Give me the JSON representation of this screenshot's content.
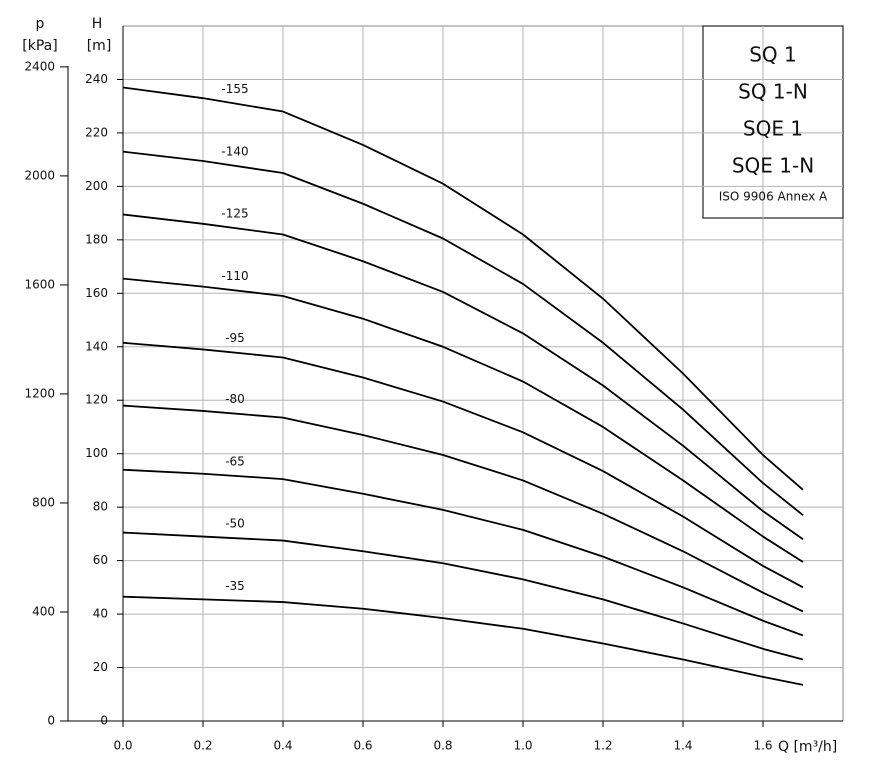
{
  "chart_data": {
    "type": "line",
    "x_label": "Q [m³/h]",
    "y_label_symbol": "H",
    "y_label_unit": "[m]",
    "y2_label_symbol": "p",
    "y2_label_unit": "[kPa]",
    "legend_lines": [
      "SQ 1",
      "SQ 1-N",
      "SQE 1",
      "SQE 1-N"
    ],
    "legend_note": "ISO 9906 Annex A",
    "x": [
      0,
      0.2,
      0.4,
      0.6,
      0.8,
      1.0,
      1.2,
      1.4,
      1.6,
      1.7
    ],
    "series": [
      {
        "name": "-155",
        "color": "#000000",
        "values": [
          237,
          233,
          228,
          215.5,
          201,
          182,
          158,
          130,
          99.5,
          86.5
        ]
      },
      {
        "name": "-140",
        "color": "#000000",
        "values": [
          213,
          209.5,
          205,
          193.5,
          180.5,
          163.5,
          141.5,
          116.5,
          89,
          77
        ]
      },
      {
        "name": "-125",
        "color": "#000000",
        "values": [
          189.5,
          186,
          182,
          172,
          160.5,
          145,
          125.5,
          103,
          78.5,
          68
        ]
      },
      {
        "name": "-110",
        "color": "#000000",
        "values": [
          165.5,
          162.5,
          159,
          150.5,
          140,
          127,
          110,
          90,
          69,
          59.5
        ]
      },
      {
        "name": "-95",
        "color": "#000000",
        "values": [
          141.5,
          139,
          136,
          128.5,
          119.5,
          108,
          93.5,
          76.5,
          58,
          50
        ]
      },
      {
        "name": "-80",
        "color": "#000000",
        "values": [
          118,
          116,
          113.5,
          107,
          99.5,
          90,
          77.5,
          63.5,
          48,
          41
        ]
      },
      {
        "name": "-65",
        "color": "#000000",
        "values": [
          94,
          92.5,
          90.5,
          85,
          79,
          71.5,
          61.5,
          50,
          37.5,
          32
        ]
      },
      {
        "name": "-50",
        "color": "#000000",
        "values": [
          70.5,
          69,
          67.5,
          63.5,
          59,
          53,
          45.5,
          36.5,
          27,
          23
        ]
      },
      {
        "name": "-35",
        "color": "#000000",
        "values": [
          46.5,
          45.5,
          44.5,
          42,
          38.5,
          34.5,
          29,
          23,
          16.5,
          13.5
        ]
      }
    ],
    "xlim": [
      0,
      1.8
    ],
    "xticks": [
      {
        "value": 0,
        "label": "0.0"
      },
      0.2,
      0.4,
      0.6,
      0.8,
      {
        "value": 1,
        "label": "1.0"
      },
      1.2,
      1.4,
      1.6
    ],
    "ylim": [
      0,
      260
    ],
    "yticks": [
      0,
      20,
      40,
      60,
      80,
      100,
      120,
      140,
      160,
      180,
      200,
      220,
      240
    ],
    "y2lim": [
      0,
      2550
    ],
    "y2ticks": [
      0,
      400,
      800,
      1200,
      1600,
      2000,
      2400
    ],
    "grid": true
  }
}
